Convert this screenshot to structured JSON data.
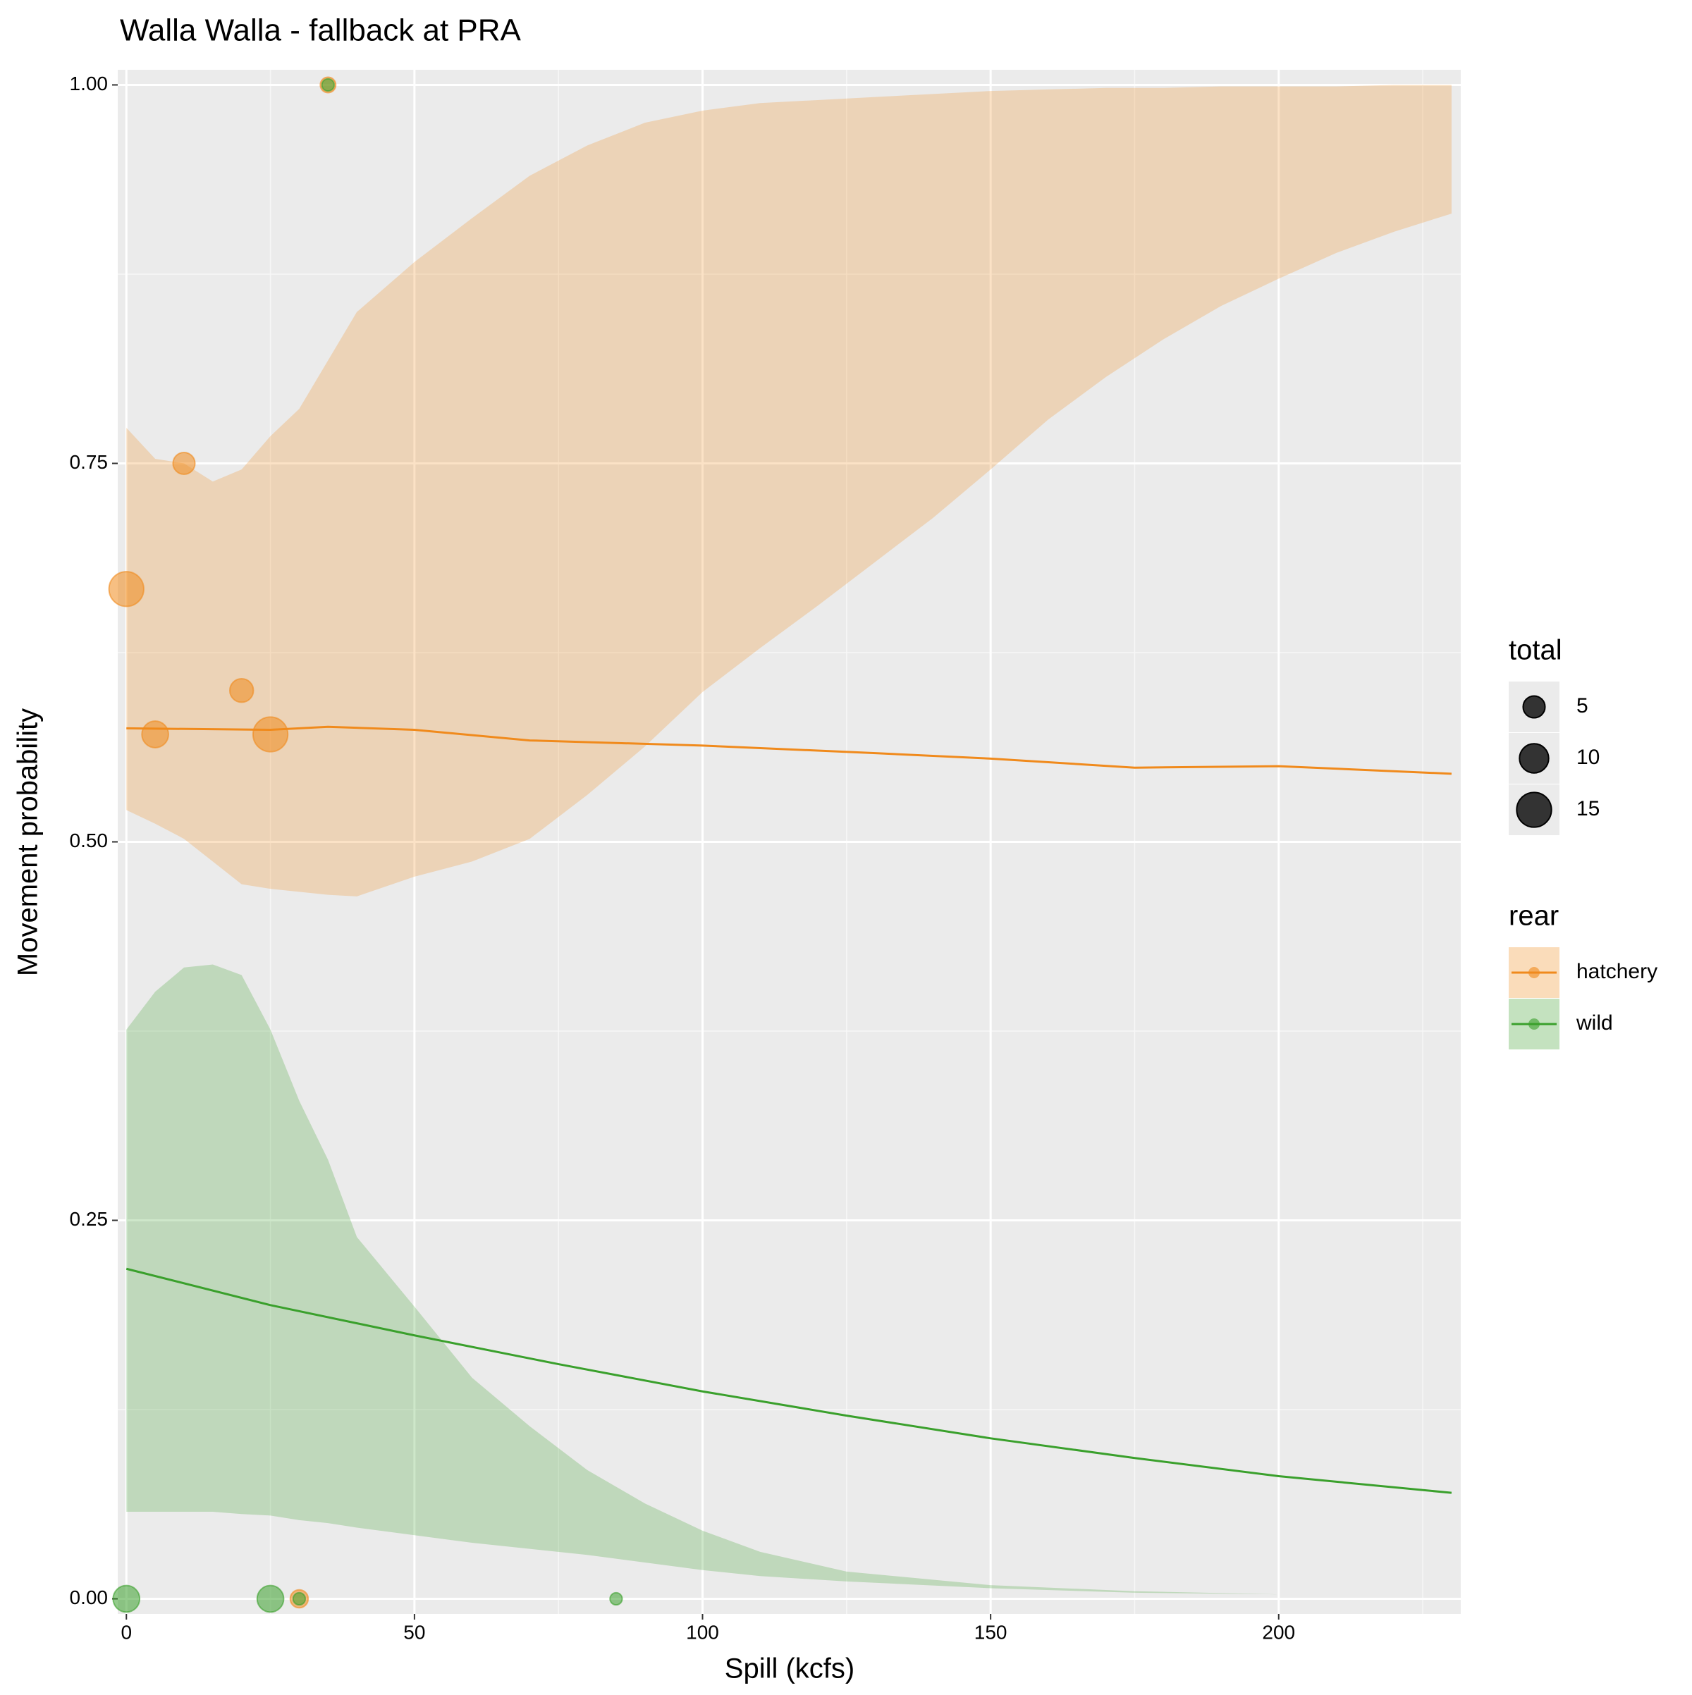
{
  "chart_data": {
    "type": "line",
    "title": "Walla Walla - fallback at PRA",
    "x_label": "Spill (kcfs)",
    "y_label": "Movement probability",
    "xlim": [
      -1.5,
      231.6
    ],
    "ylim": [
      -0.01,
      1.01
    ],
    "xticks": [
      0,
      50,
      100,
      150,
      200
    ],
    "yticks": [
      {
        "value": 0,
        "label": "0.00"
      },
      {
        "value": 0.25,
        "label": "0.25"
      },
      {
        "value": 0.5,
        "label": "0.50"
      },
      {
        "value": 0.75,
        "label": "0.75"
      },
      {
        "value": 1,
        "label": "1.00"
      }
    ],
    "x_minor_ticks": [
      25,
      75,
      125,
      175,
      225
    ],
    "y_minor_ticks": [
      0.125,
      0.375,
      0.625,
      0.875
    ],
    "grid": true,
    "series": [
      {
        "name": "hatchery",
        "color": "#f08a1c",
        "x": [
          0,
          25,
          35,
          50,
          70,
          100,
          130,
          150,
          175,
          200,
          230
        ],
        "values": [
          0.575,
          0.574,
          0.576,
          0.574,
          0.567,
          0.5636,
          0.5586,
          0.555,
          0.549,
          0.55,
          0.545
        ],
        "ribbon_x": [
          0,
          5,
          10,
          15,
          20,
          25,
          30,
          35,
          40,
          50,
          60,
          70,
          80,
          90,
          100,
          110,
          120,
          130,
          140,
          150,
          160,
          170,
          180,
          190,
          200,
          210,
          220,
          230
        ],
        "ribbon_upper": [
          0.7735,
          0.753,
          0.75,
          0.738,
          0.746,
          0.768,
          0.786,
          0.818,
          0.85,
          0.883,
          0.912,
          0.94,
          0.96,
          0.975,
          0.983,
          0.988,
          0.99,
          0.992,
          0.994,
          0.996,
          0.997,
          0.998,
          0.998,
          0.999,
          0.999,
          0.999,
          1.0,
          1.0
        ],
        "ribbon_lower": [
          0.521,
          0.512,
          0.502,
          0.487,
          0.472,
          0.469,
          0.467,
          0.465,
          0.464,
          0.477,
          0.487,
          0.502,
          0.531,
          0.563,
          0.599,
          0.628,
          0.656,
          0.685,
          0.714,
          0.746,
          0.779,
          0.807,
          0.832,
          0.854,
          0.872,
          0.889,
          0.903,
          0.915
        ],
        "points": {
          "x": [
            0,
            5,
            10,
            20,
            25,
            35,
            30
          ],
          "values": [
            0.667,
            0.571,
            0.75,
            0.6,
            0.571,
            1.0,
            0.0
          ],
          "sizes": [
            15,
            8,
            5,
            6,
            15,
            2,
            3
          ]
        }
      },
      {
        "name": "wild",
        "color": "#3aa02c",
        "x": [
          0,
          25,
          50,
          75,
          100,
          125,
          150,
          175,
          200,
          230
        ],
        "values": [
          0.218,
          0.194,
          0.174,
          0.155,
          0.137,
          0.121,
          0.106,
          0.093,
          0.081,
          0.07
        ],
        "ribbon_x": [
          0,
          5,
          10,
          15,
          20,
          25,
          30,
          35,
          40,
          50,
          60,
          70,
          80,
          90,
          100,
          110,
          125,
          150,
          175,
          200,
          230
        ],
        "ribbon_upper": [
          0.376,
          0.401,
          0.417,
          0.419,
          0.412,
          0.376,
          0.329,
          0.29,
          0.239,
          0.193,
          0.146,
          0.114,
          0.085,
          0.063,
          0.045,
          0.031,
          0.018,
          0.009,
          0.005,
          0.003,
          0.0015
        ],
        "ribbon_lower": [
          0.0575,
          0.0575,
          0.0575,
          0.0575,
          0.056,
          0.055,
          0.052,
          0.05,
          0.047,
          0.042,
          0.037,
          0.033,
          0.029,
          0.024,
          0.019,
          0.015,
          0.0115,
          0.007,
          0.004,
          0.003,
          0.0015
        ],
        "points": {
          "x": [
            0,
            25,
            85,
            35,
            30
          ],
          "values": [
            0.0,
            0.0,
            0.0,
            1.0,
            0.0
          ],
          "sizes": [
            8,
            8,
            1,
            1,
            1
          ]
        }
      }
    ],
    "size_legend": {
      "title": "total",
      "values": [
        5,
        10,
        15
      ]
    },
    "color_legend": {
      "title": "rear"
    }
  }
}
